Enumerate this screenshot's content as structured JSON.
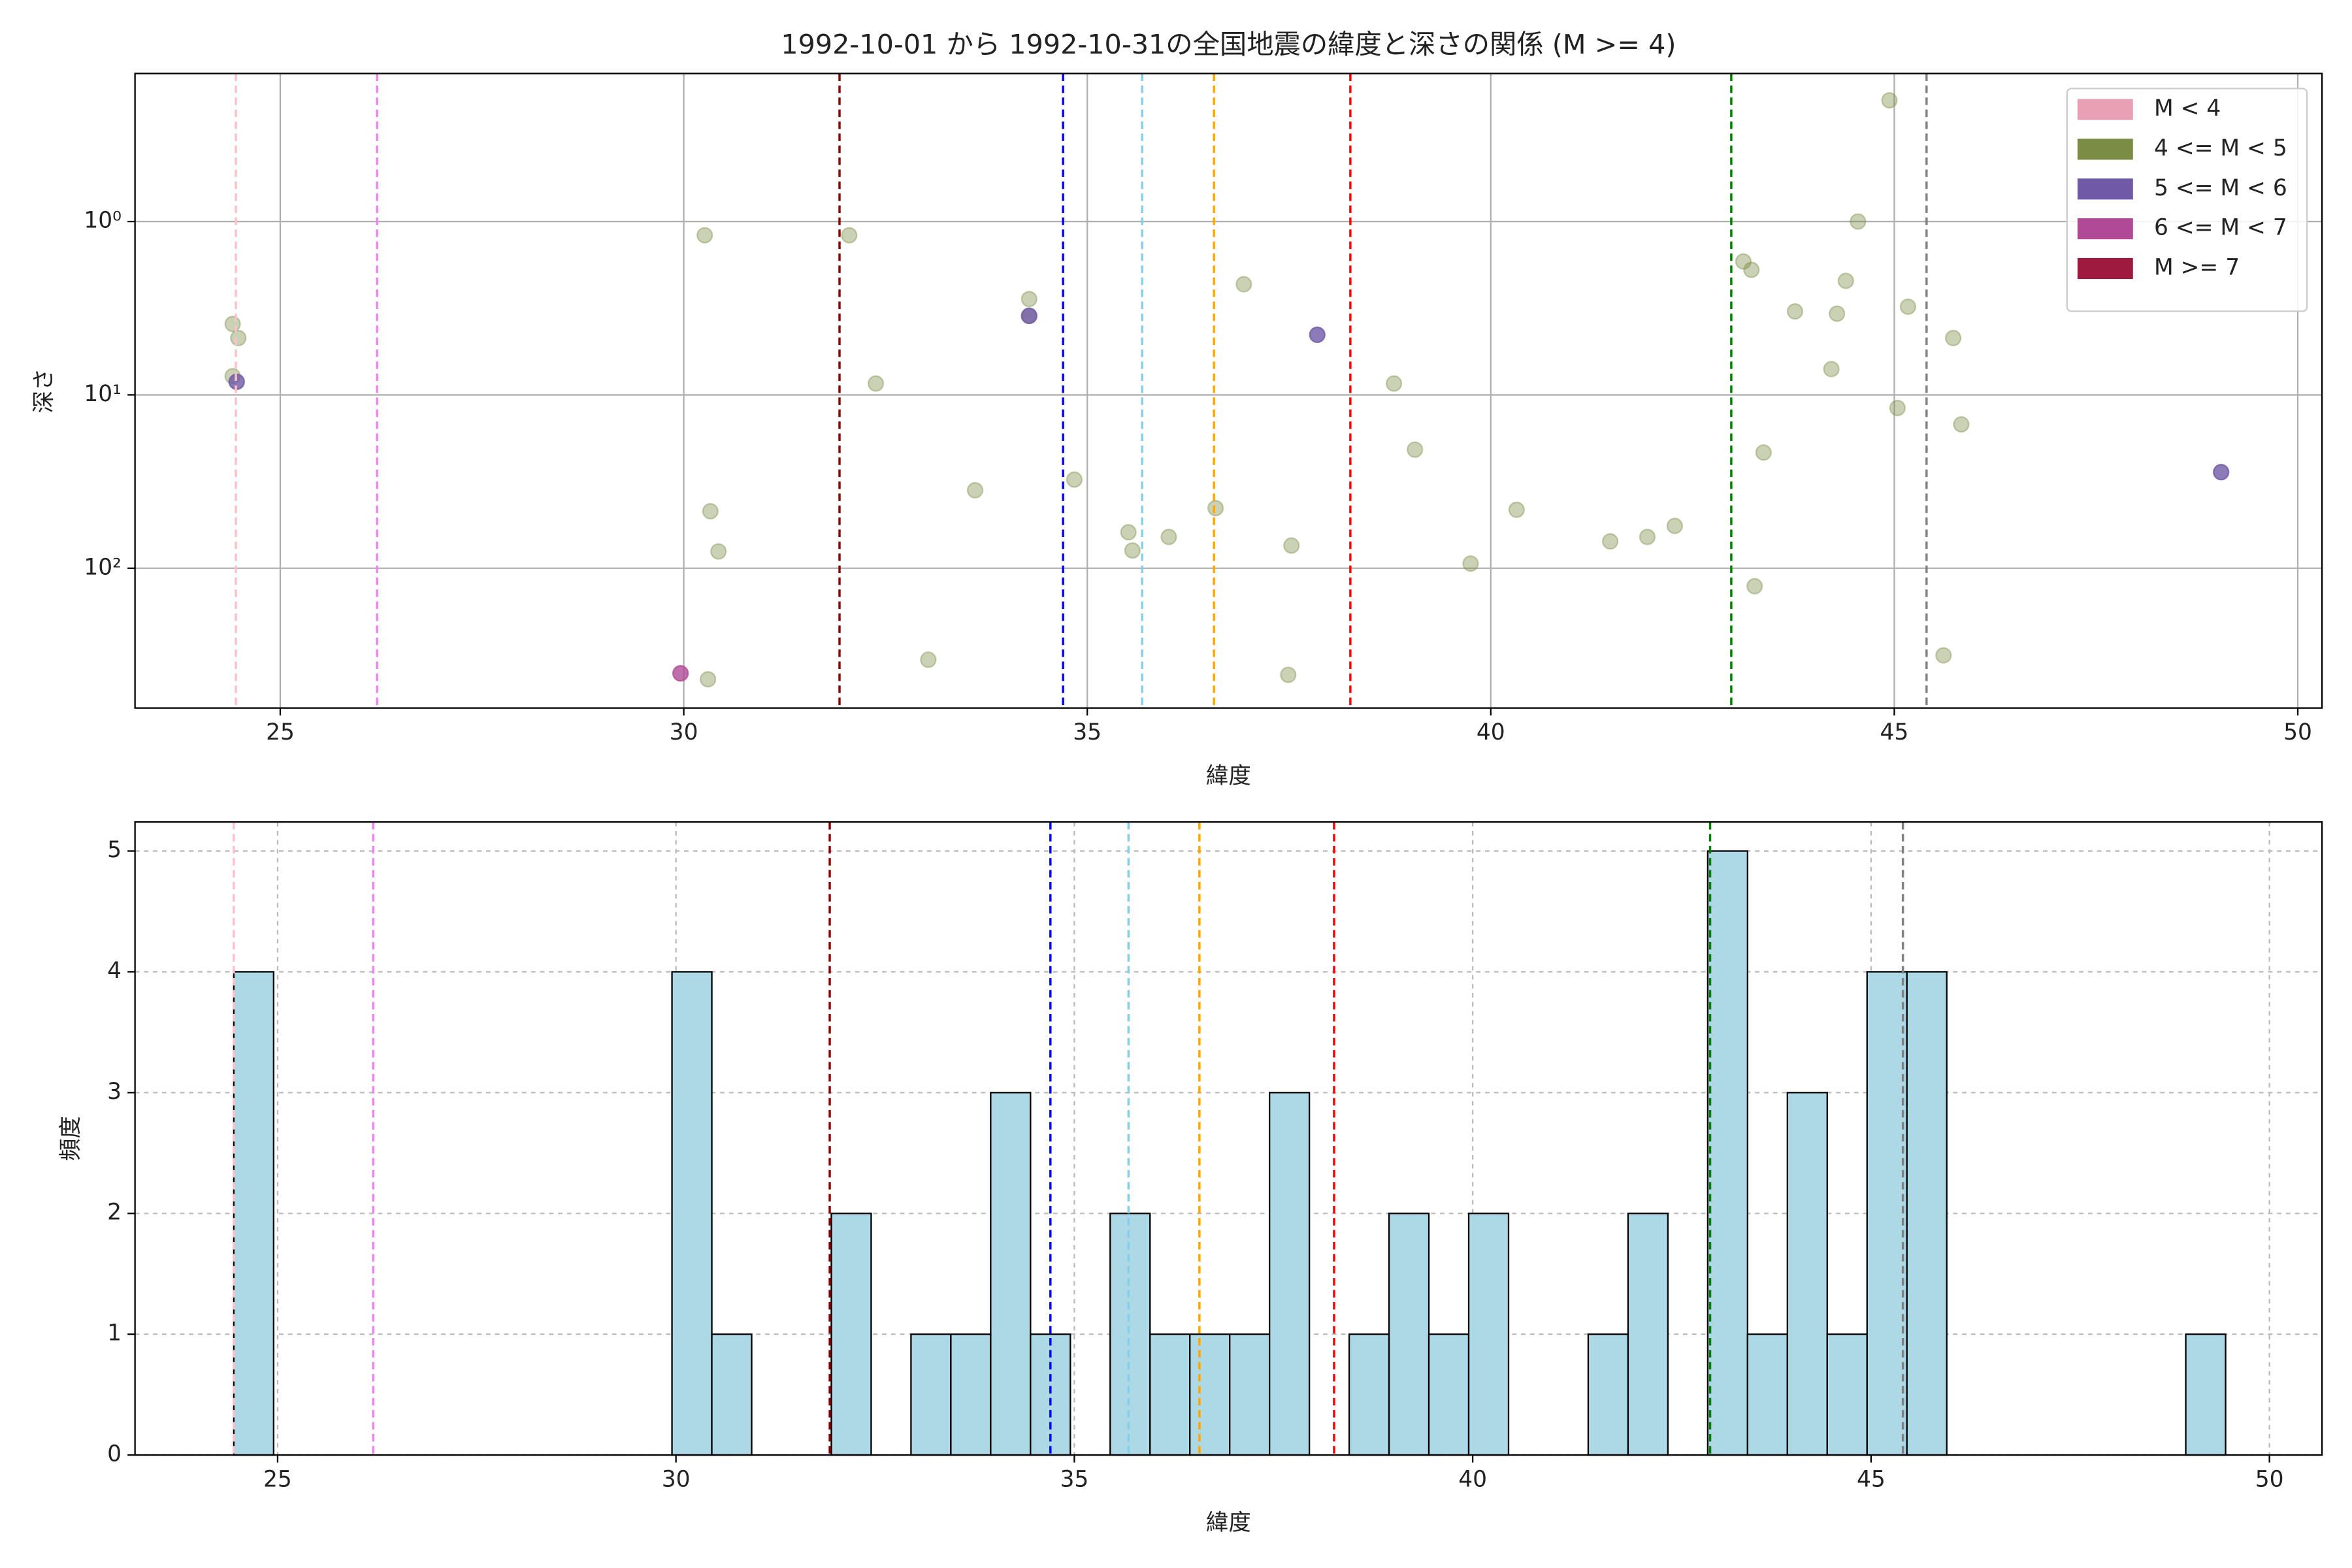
{
  "chart_data": [
    {
      "type": "scatter",
      "title": "1992-10-01 から 1992-10-31の全国地震の緯度と深さの関係 (M >= 4)",
      "x_label": "緯度",
      "y_label": "深さ",
      "xlim": [
        23.2,
        50.3
      ],
      "xticks": [
        25,
        30,
        35,
        40,
        45,
        50
      ],
      "ylim": [
        640,
        0.14
      ],
      "log_y": true,
      "yticks": [
        {
          "value": 1,
          "label": "10⁰"
        },
        {
          "value": 10,
          "label": "10¹"
        },
        {
          "value": 100,
          "label": "10²"
        }
      ],
      "grid": true,
      "grid_style": "solid",
      "legend": "upper right",
      "series": [
        {
          "name": "M < 4",
          "color": "#e8a0b4",
          "alpha": 0.8,
          "x": [],
          "y": []
        },
        {
          "name": "4 <= M < 5",
          "color": "#7b8c45",
          "alpha": 0.4,
          "x": [
            24.41,
            24.48,
            24.41,
            30.26,
            30.33,
            30.43,
            30.3,
            32.05,
            32.38,
            33.03,
            33.61,
            34.28,
            34.28,
            34.84,
            35.51,
            35.56,
            36.01,
            36.59,
            36.94,
            37.53,
            37.49,
            38.8,
            39.06,
            39.75,
            40.32,
            41.48,
            41.94,
            42.28,
            43.13,
            43.23,
            43.38,
            43.27,
            43.77,
            44.4,
            44.29,
            44.22,
            44.55,
            44.94,
            45.04,
            45.17,
            45.73,
            45.83,
            45.61
          ],
          "y": [
            3.9,
            4.7,
            7.8,
            1.2,
            46.9,
            80,
            437,
            1.2,
            8.6,
            337,
            35.5,
            2.8,
            3.5,
            30.8,
            62,
            79,
            66,
            45,
            2.3,
            74,
            412,
            8.6,
            20.7,
            94,
            46,
            70,
            66,
            57,
            1.7,
            1.9,
            21.5,
            127,
            3.3,
            2.2,
            3.4,
            7.1,
            1,
            0.2,
            11.9,
            3.1,
            4.7,
            14.8,
            318
          ]
        },
        {
          "name": "5 <= M < 6",
          "color": "#7059a6",
          "alpha": 0.8,
          "x": [
            24.46,
            34.28,
            37.85,
            49.05
          ],
          "y": [
            8.4,
            3.5,
            4.5,
            27.9
          ]
        },
        {
          "name": "6 <= M < 7",
          "color": "#b04a97",
          "alpha": 0.8,
          "x": [
            29.96
          ],
          "y": [
            404
          ]
        },
        {
          "name": "M >= 7",
          "color": "#9e1b3f",
          "alpha": 0.8,
          "x": [],
          "y": []
        }
      ],
      "vlines": [
        {
          "x": 24.45,
          "color": "#ffc0cb"
        },
        {
          "x": 26.2,
          "color": "#ee82ee"
        },
        {
          "x": 31.93,
          "color": "#8b0000"
        },
        {
          "x": 34.7,
          "color": "#0000ff"
        },
        {
          "x": 35.68,
          "color": "#87ceeb"
        },
        {
          "x": 36.57,
          "color": "#ffa500"
        },
        {
          "x": 38.26,
          "color": "#ff0000"
        },
        {
          "x": 42.98,
          "color": "#008000"
        },
        {
          "x": 45.4,
          "color": "#808080"
        }
      ]
    },
    {
      "type": "histogram",
      "x_label": "緯度",
      "y_label": "頻度",
      "xlim": [
        23.21,
        50.66
      ],
      "xticks": [
        25,
        30,
        35,
        40,
        45,
        50
      ],
      "ylim": [
        0,
        5.24
      ],
      "yticks": [
        0,
        1,
        2,
        3,
        4,
        5
      ],
      "grid": true,
      "grid_style": "dashed",
      "color": "#add8e6",
      "bins": [
        24.45,
        24.95,
        25.45,
        25.95,
        26.45,
        26.95,
        27.45,
        27.95,
        28.45,
        28.95,
        29.45,
        29.95,
        30.45,
        30.95,
        31.45,
        31.95,
        32.45,
        32.95,
        33.45,
        33.95,
        34.45,
        34.95,
        35.45,
        35.95,
        36.45,
        36.95,
        37.45,
        37.95,
        38.45,
        38.95,
        39.45,
        39.95,
        40.45,
        40.95,
        41.45,
        41.95,
        42.45,
        42.95,
        43.45,
        43.95,
        44.45,
        44.95,
        45.45,
        45.95,
        46.45,
        46.95,
        47.45,
        47.95,
        48.45,
        48.95,
        49.45
      ],
      "values": [
        4,
        0,
        0,
        0,
        0,
        0,
        0,
        0,
        0,
        0,
        0,
        4,
        1,
        0,
        0,
        2,
        0,
        1,
        1,
        3,
        1,
        0,
        2,
        1,
        1,
        1,
        3,
        0,
        1,
        2,
        1,
        2,
        0,
        0,
        1,
        2,
        0,
        5,
        1,
        3,
        1,
        4,
        4,
        0,
        0,
        0,
        0,
        0,
        0,
        1
      ],
      "vlines": [
        {
          "x": 24.45,
          "color": "#ffc0cb"
        },
        {
          "x": 26.2,
          "color": "#ee82ee"
        },
        {
          "x": 31.93,
          "color": "#8b0000"
        },
        {
          "x": 34.7,
          "color": "#0000ff"
        },
        {
          "x": 35.68,
          "color": "#87ceeb"
        },
        {
          "x": 36.57,
          "color": "#ffa500"
        },
        {
          "x": 38.26,
          "color": "#ff0000"
        },
        {
          "x": 42.98,
          "color": "#008000"
        },
        {
          "x": 45.4,
          "color": "#808080"
        }
      ]
    }
  ]
}
